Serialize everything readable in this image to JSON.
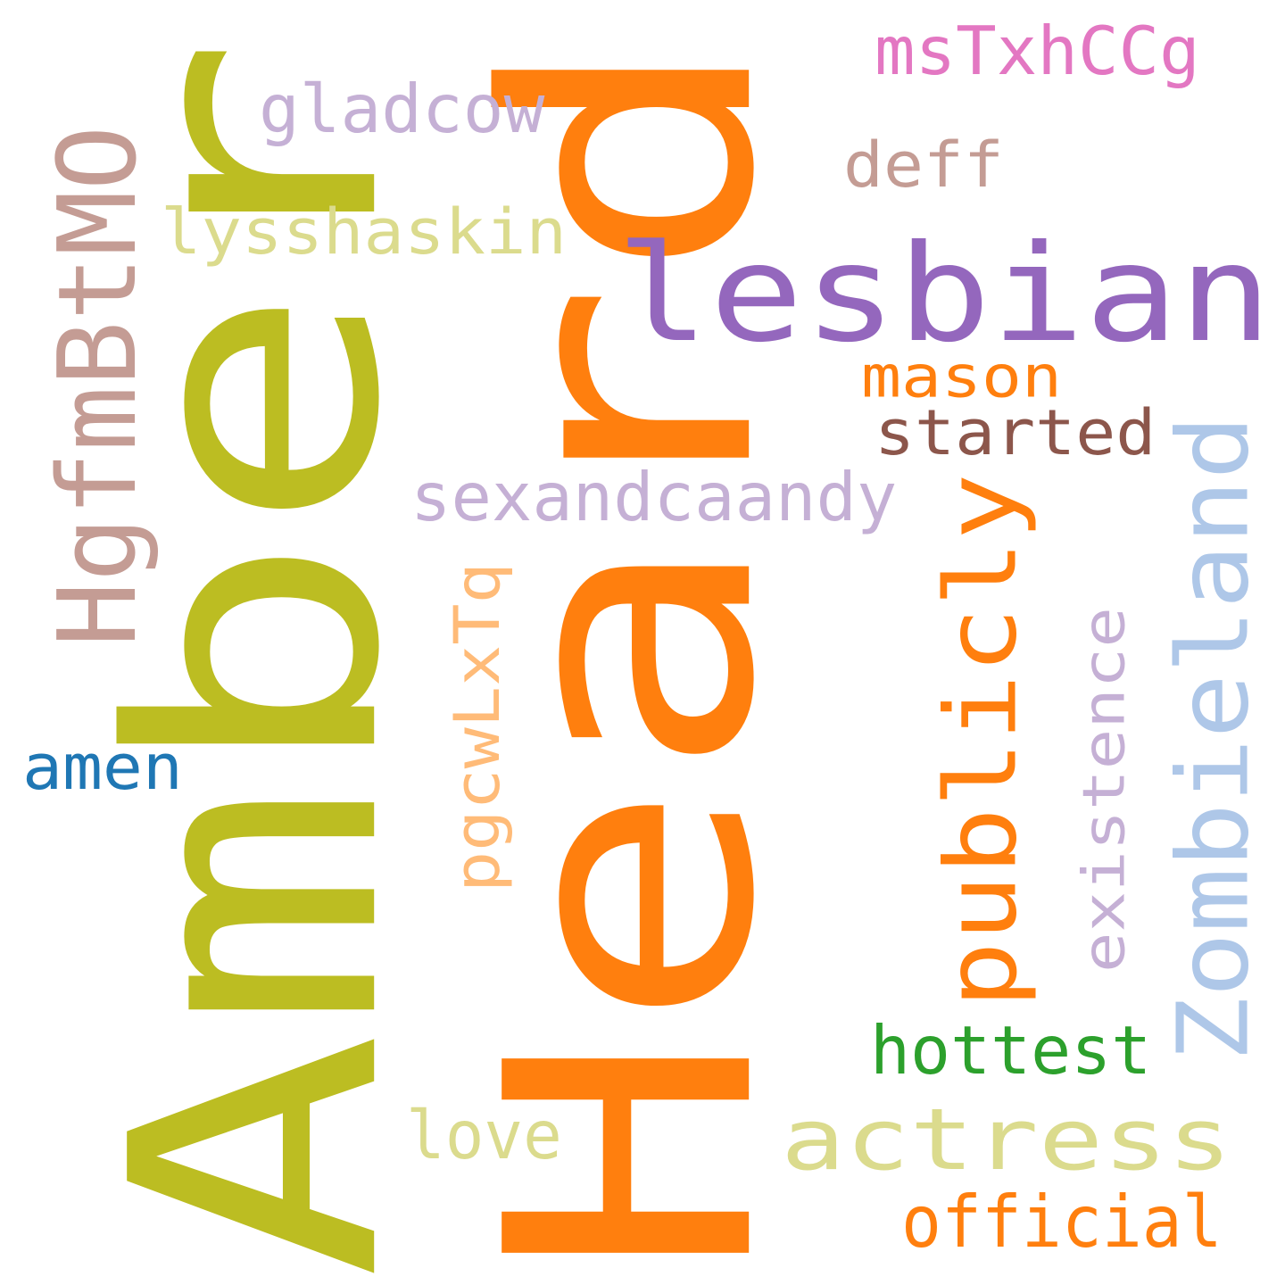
{
  "words": [
    {
      "id": "amber",
      "text": "Amber",
      "color": "#bcbd22",
      "rotated": true
    },
    {
      "id": "heard",
      "text": "Heard",
      "color": "#ff7f0e",
      "rotated": true
    },
    {
      "id": "lesbian",
      "text": "lesbian",
      "color": "#9467bd",
      "rotated": false
    },
    {
      "id": "zombieland",
      "text": "Zombieland",
      "color": "#aec7e8",
      "rotated": true
    },
    {
      "id": "publicly",
      "text": "publicly",
      "color": "#ff7f0e",
      "rotated": true
    },
    {
      "id": "hgfmbtmo",
      "text": "HgfmBtMO",
      "color": "#c49c94",
      "rotated": true
    },
    {
      "id": "actress",
      "text": "actress",
      "color": "#dbdb8d",
      "rotated": false
    },
    {
      "id": "existence",
      "text": "existence",
      "color": "#c5b0d5",
      "rotated": true
    },
    {
      "id": "pgcwlxtq",
      "text": "pgcwLxTq",
      "color": "#ffbb78",
      "rotated": true
    },
    {
      "id": "sexandcaandy",
      "text": "sexandcaandy",
      "color": "#c5b0d5",
      "rotated": false
    },
    {
      "id": "lysshaskin",
      "text": "lysshaskin",
      "color": "#dbdb8d",
      "rotated": false
    },
    {
      "id": "mstxhccg",
      "text": "msTxhCCg",
      "color": "#e377c2",
      "rotated": false
    },
    {
      "id": "gladcow",
      "text": "gladcow",
      "color": "#c5b0d5",
      "rotated": false
    },
    {
      "id": "deff",
      "text": "deff",
      "color": "#c49c94",
      "rotated": false
    },
    {
      "id": "mason",
      "text": "mason",
      "color": "#ff7f0e",
      "rotated": false
    },
    {
      "id": "started",
      "text": "started",
      "color": "#8c564b",
      "rotated": false
    },
    {
      "id": "amen",
      "text": "amen",
      "color": "#1f77b4",
      "rotated": false
    },
    {
      "id": "hottest",
      "text": "hottest",
      "color": "#2ca02c",
      "rotated": false
    },
    {
      "id": "love",
      "text": "love",
      "color": "#dbdb8d",
      "rotated": false
    },
    {
      "id": "official",
      "text": "official",
      "color": "#ff7f0e",
      "rotated": false
    }
  ]
}
